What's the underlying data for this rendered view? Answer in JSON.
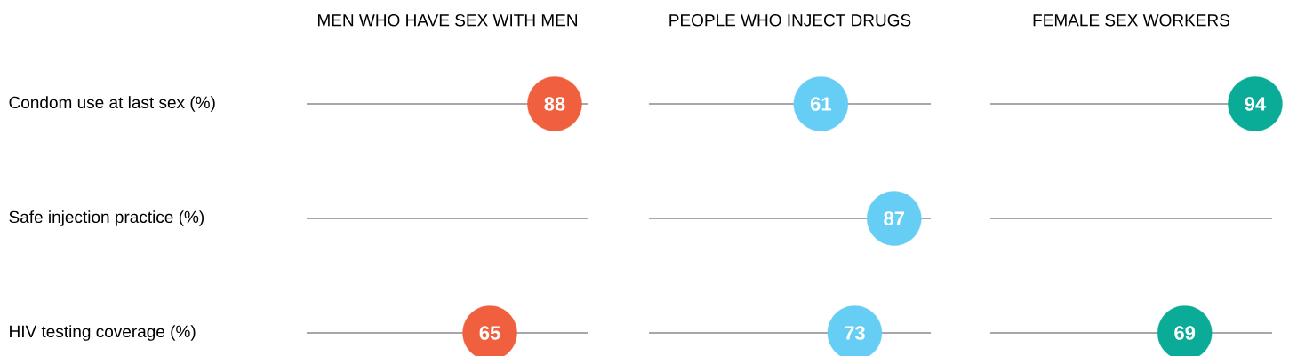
{
  "chart_data": [
    {
      "type": "scatter",
      "orientation": "horizontal",
      "title": "MEN WHO HAVE SEX WITH MEN",
      "categories": [
        "Condom use at last sex (%)",
        "Safe injection practice (%)",
        "HIV  testing coverage (%)"
      ],
      "values": [
        88,
        null,
        65
      ],
      "color": "#f0603f",
      "xlim": [
        0,
        100
      ],
      "grid": "y",
      "marker": "circle",
      "data_labels": true,
      "tick_labels": "y"
    },
    {
      "type": "scatter",
      "orientation": "horizontal",
      "title": "PEOPLE WHO INJECT DRUGS",
      "categories": [
        null,
        null,
        null
      ],
      "values": [
        61,
        87,
        73
      ],
      "color": "#66cdf5",
      "xlim": [
        0,
        100
      ],
      "grid": "y",
      "marker": "circle",
      "data_labels": true,
      "tick_labels": false
    },
    {
      "type": "scatter",
      "orientation": "horizontal",
      "title": "FEMALE SEX WORKERS",
      "categories": [
        null,
        null,
        null
      ],
      "values": [
        94,
        null,
        69
      ],
      "color": "#0aab97",
      "xlim": [
        0,
        100
      ],
      "grid": "y",
      "marker": "circle",
      "data_labels": true,
      "tick_labels": false
    }
  ]
}
